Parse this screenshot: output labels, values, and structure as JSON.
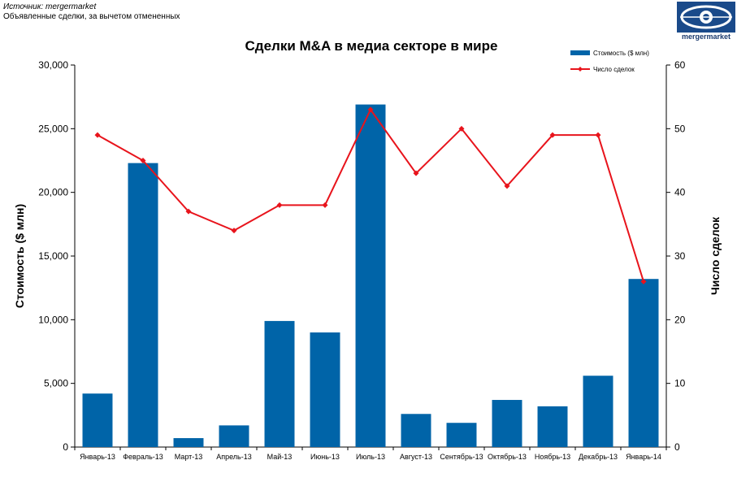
{
  "header": {
    "source": "Источник: mergermarket",
    "subtitle": "Объявленные сделки, за вычетом отмененных"
  },
  "logo": {
    "text": "mergermarket",
    "color": "#1a4a8a"
  },
  "colors": {
    "bar": "#0064a8",
    "line": "#e8141c",
    "axis": "#000000"
  },
  "chart_data": {
    "type": "bar",
    "title": "Сделки M&A в медиа секторе в мире",
    "categories": [
      "Январь-13",
      "Февраль-13",
      "Март-13",
      "Апрель-13",
      "Май-13",
      "Июнь-13",
      "Июль-13",
      "Август-13",
      "Сентябрь-13",
      "Октябрь-13",
      "Ноябрь-13",
      "Декабрь-13",
      "Январь-14"
    ],
    "ylabel": "Стоимость ($ млн)",
    "y2label": "Число сделок",
    "ylim": [
      0,
      30000
    ],
    "y2lim": [
      0,
      60
    ],
    "yticks": [
      "0",
      "5,000",
      "10,000",
      "15,000",
      "20,000",
      "25,000",
      "30,000"
    ],
    "y2ticks": [
      "0",
      "10",
      "20",
      "30",
      "40",
      "50",
      "60"
    ],
    "series": [
      {
        "name": "Стоимость ($ млн)",
        "kind": "bar",
        "axis": "left",
        "values": [
          4200,
          22300,
          700,
          1700,
          9900,
          9000,
          26900,
          2600,
          1900,
          3700,
          3200,
          5600,
          13200
        ]
      },
      {
        "name": "Число сделок",
        "kind": "line",
        "axis": "right",
        "values": [
          49,
          45,
          37,
          34,
          38,
          38,
          53,
          43,
          50,
          41,
          49,
          49,
          26
        ]
      }
    ],
    "legend_position": "top-right",
    "grid": false
  }
}
